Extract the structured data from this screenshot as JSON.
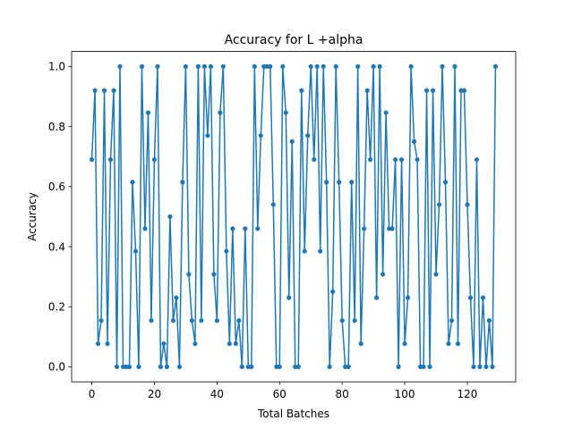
{
  "chart_data": {
    "type": "line",
    "title": "Accuracy for L +alpha",
    "xlabel": "Total Batches",
    "ylabel": "Accuracy",
    "xlim": [
      -6.45,
      135.45
    ],
    "ylim": [
      -0.05,
      1.05
    ],
    "xticks": [
      0,
      20,
      40,
      60,
      80,
      100,
      120
    ],
    "yticks": [
      0.0,
      0.2,
      0.4,
      0.6,
      0.8,
      1.0
    ],
    "xtick_labels": [
      "0",
      "20",
      "40",
      "60",
      "80",
      "100",
      "120"
    ],
    "ytick_labels": [
      "0.0",
      "0.2",
      "0.4",
      "0.6",
      "0.8",
      "1.0"
    ],
    "grid": false,
    "legend": "none",
    "series": [
      {
        "color": "#1f77b4",
        "marker": "circle",
        "x": [
          0,
          1,
          2,
          3,
          4,
          5,
          6,
          7,
          8,
          9,
          10,
          11,
          12,
          13,
          14,
          15,
          16,
          17,
          18,
          19,
          20,
          21,
          22,
          23,
          24,
          25,
          26,
          27,
          28,
          29,
          30,
          31,
          32,
          33,
          34,
          35,
          36,
          37,
          38,
          39,
          40,
          41,
          42,
          43,
          44,
          45,
          46,
          47,
          48,
          49,
          50,
          51,
          52,
          53,
          54,
          55,
          56,
          57,
          58,
          59,
          60,
          61,
          62,
          63,
          64,
          65,
          66,
          67,
          68,
          69,
          70,
          71,
          72,
          73,
          74,
          75,
          76,
          77,
          78,
          79,
          80,
          81,
          82,
          83,
          84,
          85,
          86,
          87,
          88,
          89,
          90,
          91,
          92,
          93,
          94,
          95,
          96,
          97,
          98,
          99,
          100,
          101,
          102,
          103,
          104,
          105,
          106,
          107,
          108,
          109,
          110,
          111,
          112,
          113,
          114,
          115,
          116,
          117,
          118,
          119,
          120,
          121,
          122,
          123,
          124,
          125,
          126,
          127,
          128,
          129
        ],
        "y": [
          0.69,
          0.92,
          0.077,
          0.154,
          0.92,
          0.077,
          0.69,
          0.92,
          0.0,
          1.0,
          0.0,
          0.0,
          0.0,
          0.615,
          0.385,
          0.0,
          1.0,
          0.46,
          0.846,
          0.154,
          0.69,
          1.0,
          0.0,
          0.077,
          0.0,
          0.5,
          0.154,
          0.23,
          0.0,
          0.615,
          1.0,
          0.308,
          0.154,
          0.077,
          1.0,
          0.154,
          1.0,
          0.77,
          1.0,
          0.308,
          0.154,
          0.846,
          1.0,
          0.385,
          0.077,
          0.46,
          0.077,
          0.154,
          0.0,
          0.46,
          0.0,
          0.0,
          1.0,
          0.46,
          0.77,
          1.0,
          1.0,
          1.0,
          0.54,
          0.0,
          0.0,
          1.0,
          0.846,
          0.23,
          0.75,
          0.0,
          0.0,
          0.92,
          0.385,
          0.77,
          1.0,
          0.69,
          1.0,
          0.385,
          1.0,
          0.615,
          0.0,
          0.25,
          1.0,
          0.615,
          0.154,
          0.0,
          0.0,
          0.615,
          0.154,
          1.0,
          0.077,
          0.46,
          0.92,
          0.69,
          1.0,
          0.23,
          1.0,
          0.308,
          0.846,
          0.46,
          0.46,
          0.69,
          0.0,
          0.69,
          0.077,
          0.23,
          1.0,
          0.75,
          0.69,
          0.0,
          0.0,
          0.92,
          0.0,
          0.92,
          0.308,
          0.54,
          1.0,
          0.615,
          0.077,
          0.154,
          1.0,
          0.077,
          0.92,
          0.92,
          0.54,
          0.23,
          0.0,
          0.69,
          0.0,
          0.23,
          0.0,
          0.154,
          0.0,
          1.0
        ]
      }
    ]
  }
}
